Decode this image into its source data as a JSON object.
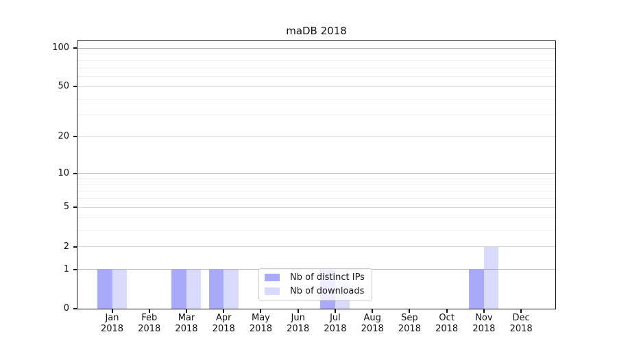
{
  "chart_data": {
    "type": "bar",
    "title": "maDB 2018",
    "categories": [
      "Jan",
      "Feb",
      "Mar",
      "Apr",
      "May",
      "Jun",
      "Jul",
      "Aug",
      "Sep",
      "Oct",
      "Nov",
      "Dec"
    ],
    "category_sublabel": "2018",
    "series": [
      {
        "name": "Nb of distinct IPs",
        "color": "rgba(85,85,245,0.5)",
        "values": [
          1,
          0,
          1,
          1,
          0,
          0,
          1,
          0,
          0,
          0,
          1,
          0
        ]
      },
      {
        "name": "Nb of downloads",
        "color": "rgba(85,85,245,0.22)",
        "values": [
          1,
          0,
          1,
          1,
          0,
          0,
          1,
          0,
          0,
          0,
          2,
          0
        ]
      }
    ],
    "y_axis": {
      "scale": "log1p",
      "ticks": [
        0,
        1,
        2,
        5,
        10,
        20,
        50,
        100
      ],
      "minor_gridlines": [
        3,
        4,
        6,
        7,
        8,
        9,
        30,
        40,
        60,
        70,
        80,
        90
      ],
      "ylim": [
        0,
        100
      ]
    },
    "xlabel": "",
    "ylabel": "",
    "grid": true,
    "legend_position": "lower center"
  },
  "colors": {
    "bar_distinct_ips_solid": "#a9a9f5",
    "bar_downloads_solid": "#d9d9f8",
    "grid_power10": "#b4b4b4",
    "grid_labeled": "#d8d8d8",
    "grid_minor": "#ededed",
    "axis_frame": "#111111",
    "text": "#111111"
  }
}
